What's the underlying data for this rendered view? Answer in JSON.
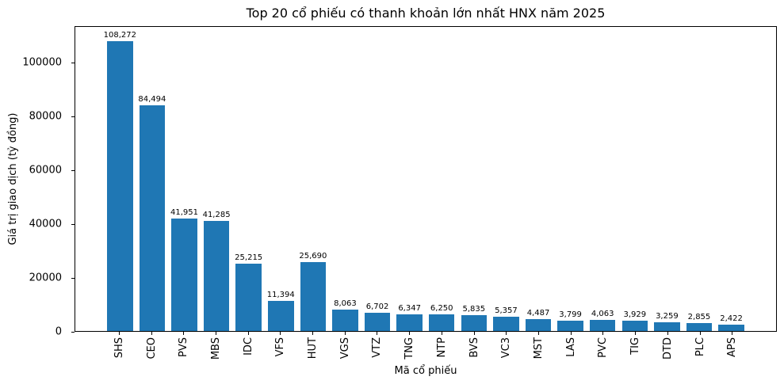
{
  "chart_data": {
    "type": "bar",
    "title": "Top 20 cổ phiếu có thanh khoản lớn nhất HNX năm 2025",
    "xlabel": "Mã cổ phiếu",
    "ylabel": "Giá trị giao dịch (tỷ đồng)",
    "categories": [
      "SHS",
      "CEO",
      "PVS",
      "MBS",
      "IDC",
      "VFS",
      "HUT",
      "VGS",
      "VTZ",
      "TNG",
      "NTP",
      "BVS",
      "VC3",
      "MST",
      "LAS",
      "PVC",
      "TIG",
      "DTD",
      "PLC",
      "APS"
    ],
    "values": [
      108272,
      84494,
      41951,
      41285,
      25215,
      11394,
      25690,
      8063,
      6702,
      6347,
      6250,
      5835,
      5357,
      4487,
      3799,
      4063,
      3929,
      3259,
      2855,
      2422
    ],
    "bar_labels": [
      "108,272",
      "84,494",
      "41,951",
      "41,285",
      "25,215",
      "11,394",
      "25,690",
      "8,063",
      "6,702",
      "6,347",
      "6,250",
      "5,835",
      "5,357",
      "4,487",
      "3,799",
      "4,063",
      "3,929",
      "3,259",
      "2,855",
      "2,422"
    ],
    "yticks": [
      0,
      20000,
      40000,
      60000,
      80000,
      100000
    ],
    "ytick_labels": [
      "0",
      "20000",
      "40000",
      "60000",
      "80000",
      "100000"
    ],
    "ylim": [
      0,
      113686
    ],
    "bar_color": "#1f77b4",
    "grid": false,
    "legend": null
  }
}
